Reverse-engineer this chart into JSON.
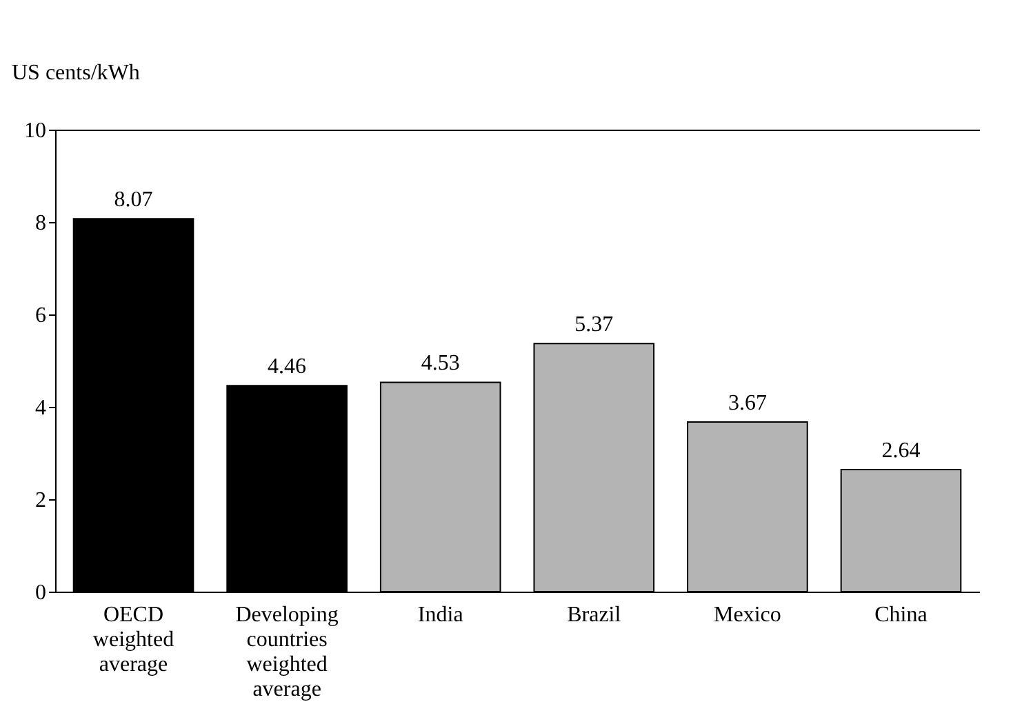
{
  "chart_data": {
    "type": "bar",
    "ylabel": "US cents/kWh",
    "categories": [
      "OECD\nweighted\naverage",
      "Developing\ncountries\nweighted\naverage",
      "India",
      "Brazil",
      "Mexico",
      "China"
    ],
    "values": [
      8.07,
      4.46,
      4.53,
      5.37,
      3.67,
      2.64
    ],
    "colors": [
      "#000000",
      "#000000",
      "#b4b4b4",
      "#b4b4b4",
      "#b4b4b4",
      "#b4b4b4"
    ],
    "ylim": [
      0,
      10
    ],
    "yticks": [
      0,
      2,
      4,
      6,
      8,
      10
    ],
    "data_labels": true,
    "grid": false
  }
}
